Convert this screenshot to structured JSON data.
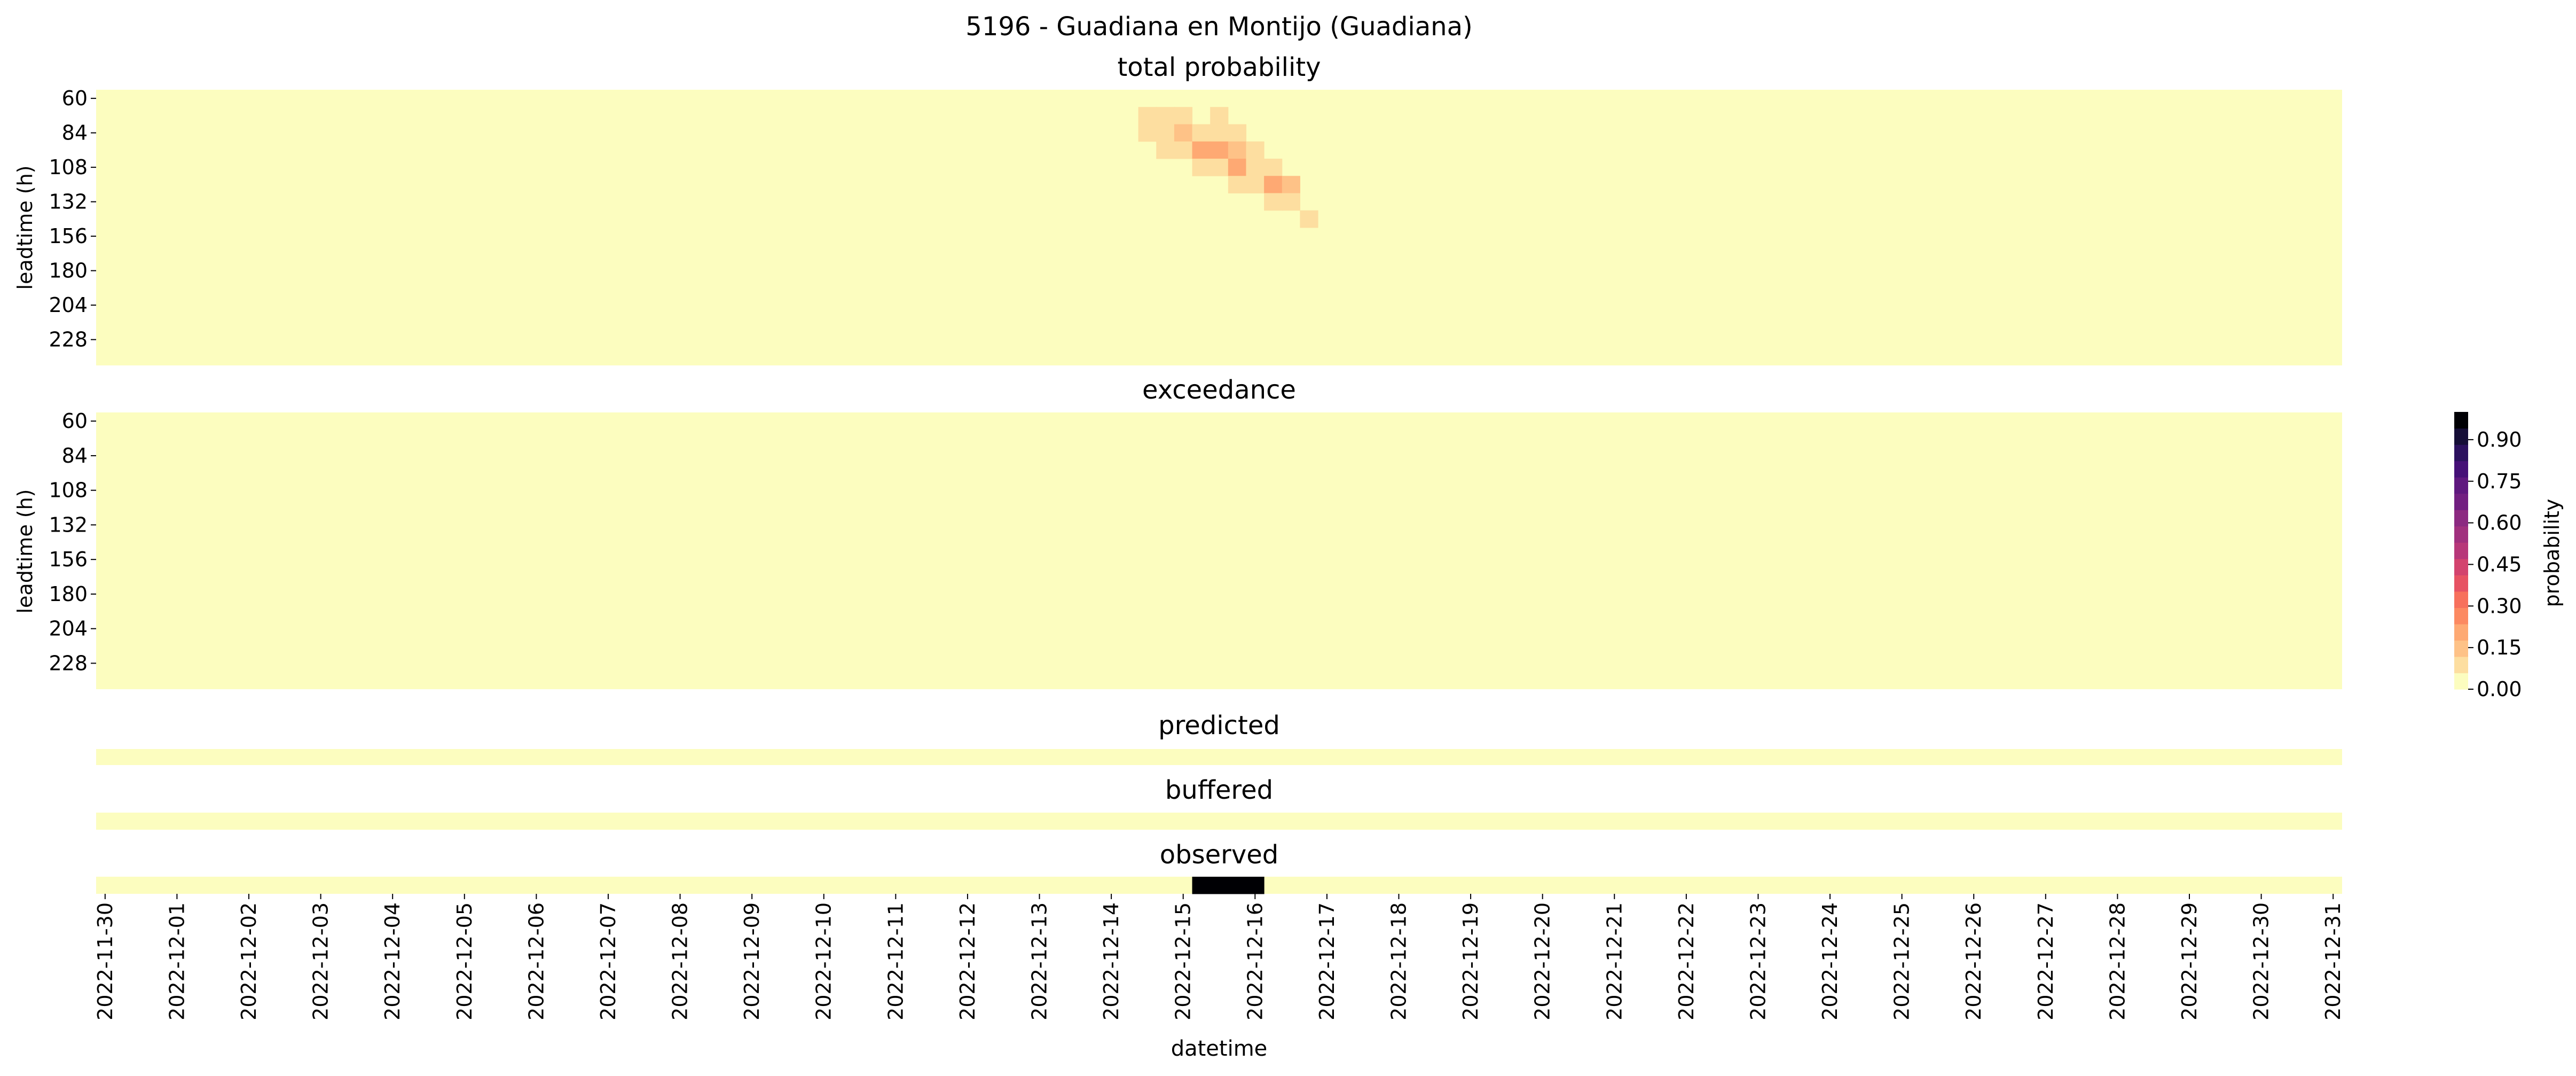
{
  "figure": {
    "title": "5196 - Guadiana en Montijo (Guadiana)"
  },
  "colormap": {
    "name": "magma_r",
    "steps": [
      "#fcfdbf",
      "#fddea0",
      "#fec287",
      "#fea973",
      "#fc8961",
      "#f7705c",
      "#e75263",
      "#d3436e",
      "#b73779",
      "#a1307e",
      "#8c2981",
      "#721f81",
      "#5f187f",
      "#451077",
      "#2c115f",
      "#150e37",
      "#000004"
    ]
  },
  "chart_data": [
    {
      "type": "heatmap",
      "title": "total probability",
      "ylabel": "leadtime (h)",
      "yticks": [
        "60",
        "84",
        "108",
        "132",
        "156",
        "180",
        "204",
        "228"
      ],
      "rows": [
        "60",
        "72",
        "84",
        "96",
        "108",
        "120",
        "132",
        "144",
        "156",
        "168",
        "180",
        "192",
        "204",
        "216",
        "228",
        "240"
      ],
      "x_start": "2022-11-30",
      "x_end": "2022-12-31",
      "steps_per_day": 4,
      "nonzero_cells": [
        {
          "leadtime": 60,
          "datetime": "2022-12-14 06:00",
          "value": 0.06
        },
        {
          "leadtime": 60,
          "datetime": "2022-12-14 12:00",
          "value": 0.06
        },
        {
          "leadtime": 72,
          "datetime": "2022-12-14 12:00",
          "value": 0.08
        },
        {
          "leadtime": 72,
          "datetime": "2022-12-14 18:00",
          "value": 0.08
        },
        {
          "leadtime": 72,
          "datetime": "2022-12-15 00:00",
          "value": 0.12
        },
        {
          "leadtime": 72,
          "datetime": "2022-12-15 12:00",
          "value": 0.08
        },
        {
          "leadtime": 84,
          "datetime": "2022-12-14 12:00",
          "value": 0.08
        },
        {
          "leadtime": 84,
          "datetime": "2022-12-14 18:00",
          "value": 0.08
        },
        {
          "leadtime": 84,
          "datetime": "2022-12-15 00:00",
          "value": 0.16
        },
        {
          "leadtime": 84,
          "datetime": "2022-12-15 06:00",
          "value": 0.08
        },
        {
          "leadtime": 84,
          "datetime": "2022-12-15 12:00",
          "value": 0.12
        },
        {
          "leadtime": 84,
          "datetime": "2022-12-15 18:00",
          "value": 0.08
        },
        {
          "leadtime": 96,
          "datetime": "2022-12-14 18:00",
          "value": 0.08
        },
        {
          "leadtime": 96,
          "datetime": "2022-12-15 00:00",
          "value": 0.12
        },
        {
          "leadtime": 96,
          "datetime": "2022-12-15 06:00",
          "value": 0.23
        },
        {
          "leadtime": 96,
          "datetime": "2022-12-15 12:00",
          "value": 0.23
        },
        {
          "leadtime": 96,
          "datetime": "2022-12-15 18:00",
          "value": 0.16
        },
        {
          "leadtime": 96,
          "datetime": "2022-12-16 00:00",
          "value": 0.08
        },
        {
          "leadtime": 108,
          "datetime": "2022-12-15 06:00",
          "value": 0.08
        },
        {
          "leadtime": 108,
          "datetime": "2022-12-15 12:00",
          "value": 0.08
        },
        {
          "leadtime": 108,
          "datetime": "2022-12-15 18:00",
          "value": 0.23
        },
        {
          "leadtime": 108,
          "datetime": "2022-12-16 00:00",
          "value": 0.12
        },
        {
          "leadtime": 108,
          "datetime": "2022-12-16 06:00",
          "value": 0.08
        },
        {
          "leadtime": 120,
          "datetime": "2022-12-15 18:00",
          "value": 0.08
        },
        {
          "leadtime": 120,
          "datetime": "2022-12-16 00:00",
          "value": 0.08
        },
        {
          "leadtime": 120,
          "datetime": "2022-12-16 06:00",
          "value": 0.23
        },
        {
          "leadtime": 120,
          "datetime": "2022-12-16 12:00",
          "value": 0.16
        },
        {
          "leadtime": 132,
          "datetime": "2022-12-16 06:00",
          "value": 0.08
        },
        {
          "leadtime": 132,
          "datetime": "2022-12-16 12:00",
          "value": 0.08
        },
        {
          "leadtime": 144,
          "datetime": "2022-12-16 18:00",
          "value": 0.08
        }
      ]
    },
    {
      "type": "heatmap",
      "title": "exceedance",
      "ylabel": "leadtime (h)",
      "yticks": [
        "60",
        "84",
        "108",
        "132",
        "156",
        "180",
        "204",
        "228"
      ],
      "rows": [
        "60",
        "72",
        "84",
        "96",
        "108",
        "120",
        "132",
        "144",
        "156",
        "168",
        "180",
        "192",
        "204",
        "216",
        "228",
        "240"
      ],
      "x_start": "2022-11-30",
      "x_end": "2022-12-31",
      "steps_per_day": 4,
      "nonzero_cells": []
    },
    {
      "type": "heatmap",
      "title": "predicted",
      "x_start": "2022-11-30",
      "x_end": "2022-12-31",
      "steps_per_day": 4,
      "nonzero_cells": []
    },
    {
      "type": "heatmap",
      "title": "buffered",
      "x_start": "2022-11-30",
      "x_end": "2022-12-31",
      "steps_per_day": 4,
      "nonzero_cells": []
    },
    {
      "type": "heatmap",
      "title": "observed",
      "xlabel": "datetime",
      "x_start": "2022-11-30",
      "x_end": "2022-12-31",
      "steps_per_day": 4,
      "xticks": [
        "2022-11-30",
        "2022-12-01",
        "2022-12-02",
        "2022-12-03",
        "2022-12-04",
        "2022-12-05",
        "2022-12-06",
        "2022-12-07",
        "2022-12-08",
        "2022-12-09",
        "2022-12-10",
        "2022-12-11",
        "2022-12-12",
        "2022-12-13",
        "2022-12-14",
        "2022-12-15",
        "2022-12-16",
        "2022-12-17",
        "2022-12-18",
        "2022-12-19",
        "2022-12-20",
        "2022-12-21",
        "2022-12-22",
        "2022-12-23",
        "2022-12-24",
        "2022-12-25",
        "2022-12-26",
        "2022-12-27",
        "2022-12-28",
        "2022-12-29",
        "2022-12-30",
        "2022-12-31"
      ],
      "nonzero_cells": [
        {
          "datetime": "2022-12-15 06:00",
          "value": 1
        },
        {
          "datetime": "2022-12-15 12:00",
          "value": 1
        },
        {
          "datetime": "2022-12-15 18:00",
          "value": 1
        },
        {
          "datetime": "2022-12-16 00:00",
          "value": 1
        }
      ]
    }
  ],
  "colorbar": {
    "label": "probability",
    "range": [
      0,
      1
    ],
    "ticks": [
      "0.00",
      "0.15",
      "0.30",
      "0.45",
      "0.60",
      "0.75",
      "0.90"
    ]
  }
}
